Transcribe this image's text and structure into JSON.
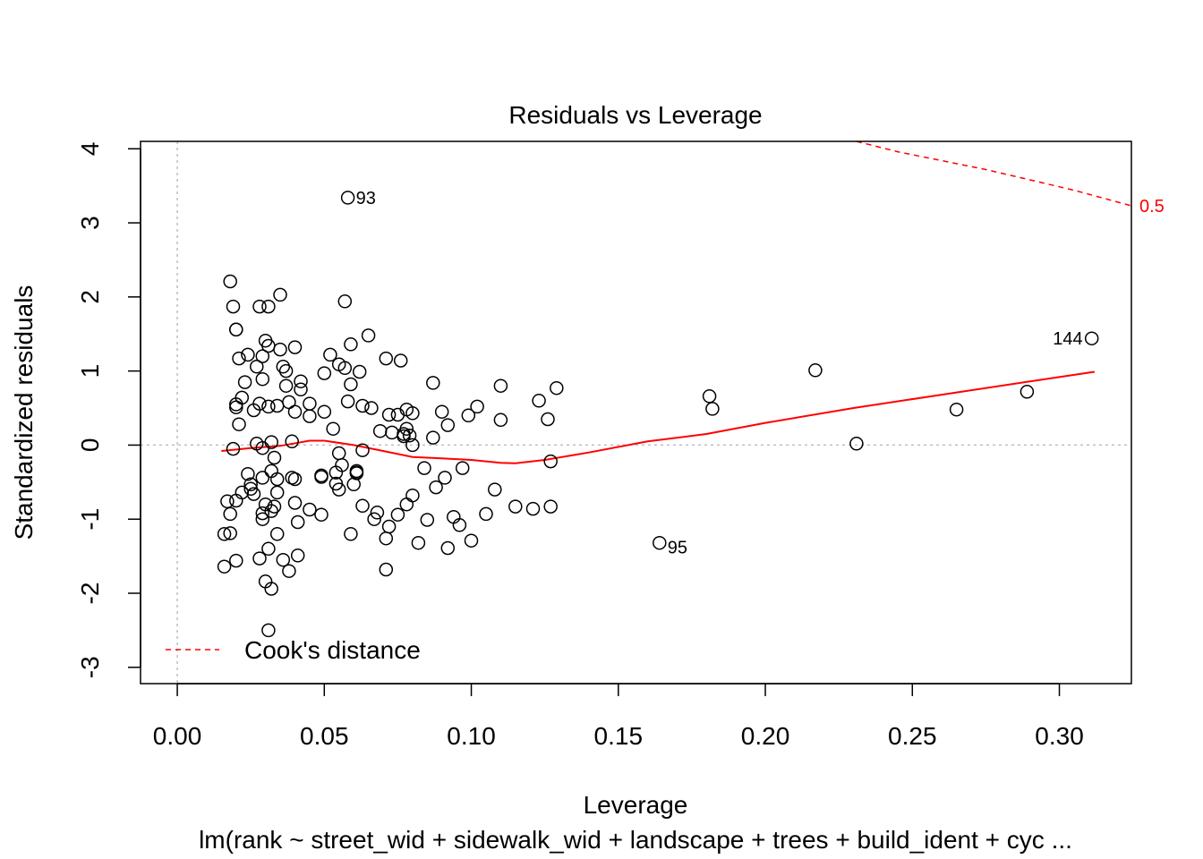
{
  "chart_data": {
    "type": "scatter",
    "title": "Residuals vs Leverage",
    "xlabel": "Leverage",
    "ylabel": "Standardized residuals",
    "subtitle": "lm(rank ~ street_wid + sidewalk_wid + landscape + trees + build_ident + cyc ...",
    "xlim": [
      -0.0125,
      0.3245
    ],
    "ylim": [
      -3.22,
      4.1
    ],
    "x_ticks": [
      0.0,
      0.05,
      0.1,
      0.15,
      0.2,
      0.25,
      0.3
    ],
    "x_tick_labels": [
      "0.00",
      "0.05",
      "0.10",
      "0.15",
      "0.20",
      "0.25",
      "0.30"
    ],
    "y_ticks": [
      -3,
      -2,
      -1,
      0,
      1,
      2,
      3,
      4
    ],
    "y_tick_labels": [
      "-3",
      "-2",
      "-1",
      "0",
      "1",
      "2",
      "3",
      "4"
    ],
    "reference_lines": {
      "x": 0,
      "y": 0
    },
    "legend": {
      "label": "Cook's distance",
      "position": "bottom-left"
    },
    "colors": {
      "points": "#000000",
      "smooth": "#ff0000",
      "cook": "#ff0000",
      "reference": "#bebebe"
    },
    "cook_contour": {
      "label": "0.5",
      "points": [
        [
          0.231,
          4.1
        ],
        [
          0.245,
          3.96
        ],
        [
          0.26,
          3.84
        ],
        [
          0.275,
          3.72
        ],
        [
          0.29,
          3.58
        ],
        [
          0.305,
          3.44
        ],
        [
          0.3245,
          3.23
        ]
      ]
    },
    "smooth_line": [
      [
        0.015,
        -0.08
      ],
      [
        0.025,
        -0.04
      ],
      [
        0.035,
        -0.01
      ],
      [
        0.045,
        0.06
      ],
      [
        0.05,
        0.06
      ],
      [
        0.06,
        0.0
      ],
      [
        0.07,
        -0.08
      ],
      [
        0.08,
        -0.16
      ],
      [
        0.09,
        -0.18
      ],
      [
        0.1,
        -0.2
      ],
      [
        0.11,
        -0.24
      ],
      [
        0.115,
        -0.245
      ],
      [
        0.125,
        -0.2
      ],
      [
        0.14,
        -0.1
      ],
      [
        0.16,
        0.05
      ],
      [
        0.18,
        0.15
      ],
      [
        0.2,
        0.3
      ],
      [
        0.23,
        0.5
      ],
      [
        0.26,
        0.68
      ],
      [
        0.29,
        0.86
      ],
      [
        0.312,
        0.99
      ]
    ],
    "labeled_points": [
      {
        "x": 0.058,
        "y": 3.34,
        "label": "93"
      },
      {
        "x": 0.311,
        "y": 1.44,
        "label": "144"
      },
      {
        "x": 0.164,
        "y": -1.32,
        "label": "95"
      }
    ],
    "points": [
      [
        0.018,
        2.21
      ],
      [
        0.019,
        1.87
      ],
      [
        0.02,
        1.56
      ],
      [
        0.02,
        1.56
      ],
      [
        0.021,
        1.17
      ],
      [
        0.02,
        0.55
      ],
      [
        0.02,
        0.51
      ],
      [
        0.021,
        0.28
      ],
      [
        0.022,
        0.64
      ],
      [
        0.023,
        0.85
      ],
      [
        0.019,
        -0.05
      ],
      [
        0.017,
        -0.76
      ],
      [
        0.018,
        -0.93
      ],
      [
        0.016,
        -1.2
      ],
      [
        0.018,
        -1.19
      ],
      [
        0.016,
        -1.64
      ],
      [
        0.02,
        -1.56
      ],
      [
        0.02,
        -0.75
      ],
      [
        0.022,
        -0.64
      ],
      [
        0.024,
        -0.39
      ],
      [
        0.025,
        -0.53
      ],
      [
        0.025,
        -0.59
      ],
      [
        0.026,
        -0.66
      ],
      [
        0.024,
        1.22
      ],
      [
        0.027,
        1.06
      ],
      [
        0.028,
        1.87
      ],
      [
        0.028,
        0.56
      ],
      [
        0.026,
        0.47
      ],
      [
        0.027,
        0.02
      ],
      [
        0.029,
        -0.04
      ],
      [
        0.029,
        -0.44
      ],
      [
        0.03,
        -0.8
      ],
      [
        0.029,
        -0.92
      ],
      [
        0.029,
        -1.0
      ],
      [
        0.028,
        -1.53
      ],
      [
        0.03,
        -1.84
      ],
      [
        0.031,
        -1.4
      ],
      [
        0.032,
        -1.94
      ],
      [
        0.031,
        -2.5
      ],
      [
        0.029,
        1.2
      ],
      [
        0.03,
        1.41
      ],
      [
        0.031,
        1.34
      ],
      [
        0.031,
        1.87
      ],
      [
        0.029,
        0.89
      ],
      [
        0.031,
        0.52
      ],
      [
        0.032,
        0.04
      ],
      [
        0.033,
        -0.17
      ],
      [
        0.032,
        -0.35
      ],
      [
        0.033,
        -0.83
      ],
      [
        0.032,
        -0.89
      ],
      [
        0.034,
        -0.64
      ],
      [
        0.034,
        -0.46
      ],
      [
        0.034,
        0.53
      ],
      [
        0.034,
        -1.2
      ],
      [
        0.035,
        2.03
      ],
      [
        0.035,
        1.29
      ],
      [
        0.036,
        1.06
      ],
      [
        0.037,
        1.0
      ],
      [
        0.037,
        0.8
      ],
      [
        0.038,
        0.58
      ],
      [
        0.036,
        -1.55
      ],
      [
        0.038,
        -1.7
      ],
      [
        0.039,
        0.05
      ],
      [
        0.039,
        -0.44
      ],
      [
        0.04,
        -0.46
      ],
      [
        0.04,
        -0.78
      ],
      [
        0.04,
        0.45
      ],
      [
        0.04,
        1.32
      ],
      [
        0.042,
        0.86
      ],
      [
        0.042,
        0.75
      ],
      [
        0.041,
        -1.04
      ],
      [
        0.041,
        -1.49
      ],
      [
        0.045,
        0.56
      ],
      [
        0.045,
        0.39
      ],
      [
        0.045,
        -0.87
      ],
      [
        0.049,
        -0.41
      ],
      [
        0.049,
        -0.43
      ],
      [
        0.049,
        -0.94
      ],
      [
        0.05,
        0.45
      ],
      [
        0.05,
        0.97
      ],
      [
        0.052,
        1.22
      ],
      [
        0.053,
        0.22
      ],
      [
        0.054,
        -0.37
      ],
      [
        0.054,
        -0.52
      ],
      [
        0.055,
        1.09
      ],
      [
        0.055,
        -0.11
      ],
      [
        0.055,
        -0.6
      ],
      [
        0.056,
        -0.27
      ],
      [
        0.057,
        1.94
      ],
      [
        0.057,
        1.04
      ],
      [
        0.058,
        0.59
      ],
      [
        0.059,
        0.82
      ],
      [
        0.059,
        1.36
      ],
      [
        0.059,
        -1.2
      ],
      [
        0.06,
        -0.53
      ],
      [
        0.061,
        -0.35
      ],
      [
        0.061,
        -0.37
      ],
      [
        0.061,
        -0.38
      ],
      [
        0.062,
        0.99
      ],
      [
        0.063,
        0.53
      ],
      [
        0.063,
        -0.07
      ],
      [
        0.063,
        -0.82
      ],
      [
        0.065,
        1.48
      ],
      [
        0.066,
        0.5
      ],
      [
        0.067,
        -1.0
      ],
      [
        0.068,
        -0.91
      ],
      [
        0.069,
        0.19
      ],
      [
        0.071,
        1.17
      ],
      [
        0.072,
        0.41
      ],
      [
        0.071,
        -1.26
      ],
      [
        0.072,
        -1.1
      ],
      [
        0.071,
        -1.68
      ],
      [
        0.073,
        0.17
      ],
      [
        0.075,
        0.41
      ],
      [
        0.076,
        1.14
      ],
      [
        0.075,
        -0.94
      ],
      [
        0.077,
        0.12
      ],
      [
        0.077,
        0.15
      ],
      [
        0.078,
        0.48
      ],
      [
        0.078,
        0.22
      ],
      [
        0.078,
        -0.8
      ],
      [
        0.079,
        0.13
      ],
      [
        0.08,
        0.43
      ],
      [
        0.08,
        0.0
      ],
      [
        0.08,
        -0.68
      ],
      [
        0.082,
        -1.32
      ],
      [
        0.084,
        -0.31
      ],
      [
        0.085,
        -1.01
      ],
      [
        0.087,
        0.84
      ],
      [
        0.087,
        0.1
      ],
      [
        0.088,
        -0.57
      ],
      [
        0.09,
        0.45
      ],
      [
        0.091,
        -0.44
      ],
      [
        0.092,
        0.27
      ],
      [
        0.092,
        -1.39
      ],
      [
        0.094,
        -0.97
      ],
      [
        0.096,
        -1.08
      ],
      [
        0.097,
        -0.31
      ],
      [
        0.099,
        0.4
      ],
      [
        0.1,
        -1.29
      ],
      [
        0.102,
        0.52
      ],
      [
        0.105,
        -0.93
      ],
      [
        0.108,
        -0.6
      ],
      [
        0.11,
        0.8
      ],
      [
        0.11,
        0.34
      ],
      [
        0.115,
        -0.83
      ],
      [
        0.121,
        -0.86
      ],
      [
        0.123,
        0.6
      ],
      [
        0.126,
        0.35
      ],
      [
        0.127,
        -0.22
      ],
      [
        0.127,
        -0.83
      ],
      [
        0.129,
        0.77
      ],
      [
        0.181,
        0.66
      ],
      [
        0.182,
        0.49
      ],
      [
        0.217,
        1.01
      ],
      [
        0.231,
        0.02
      ],
      [
        0.265,
        0.48
      ],
      [
        0.289,
        0.72
      ]
    ]
  }
}
